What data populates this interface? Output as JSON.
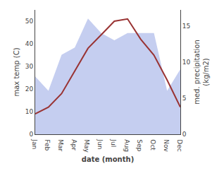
{
  "chart_data": {
    "type": "line",
    "categories": [
      "Jan",
      "Feb",
      "Mar",
      "Apr",
      "May",
      "Jun",
      "Jul",
      "Aug",
      "Sep",
      "Oct",
      "Nov",
      "Dec"
    ],
    "xlabel": "date (month)",
    "ylabel": "max temp (C)",
    "y2label": "med. precipitation\n(kg/m2)",
    "series": [
      {
        "type": "area",
        "color": "#c5cef0",
        "axis": "y2",
        "values": [
          8,
          6,
          11,
          12,
          16,
          14,
          13,
          14,
          14,
          14,
          6,
          9
        ]
      },
      {
        "type": "line",
        "color": "#993333",
        "values": [
          9,
          12,
          18,
          28,
          38,
          44,
          50,
          51,
          42,
          35,
          24,
          12
        ]
      }
    ],
    "ylim": [
      0,
      55
    ],
    "yticks": [
      0,
      10,
      20,
      30,
      40,
      50
    ],
    "y2lim": [
      0,
      17.2
    ],
    "y2ticks": [
      0,
      5,
      10,
      15
    ],
    "grid": false
  }
}
